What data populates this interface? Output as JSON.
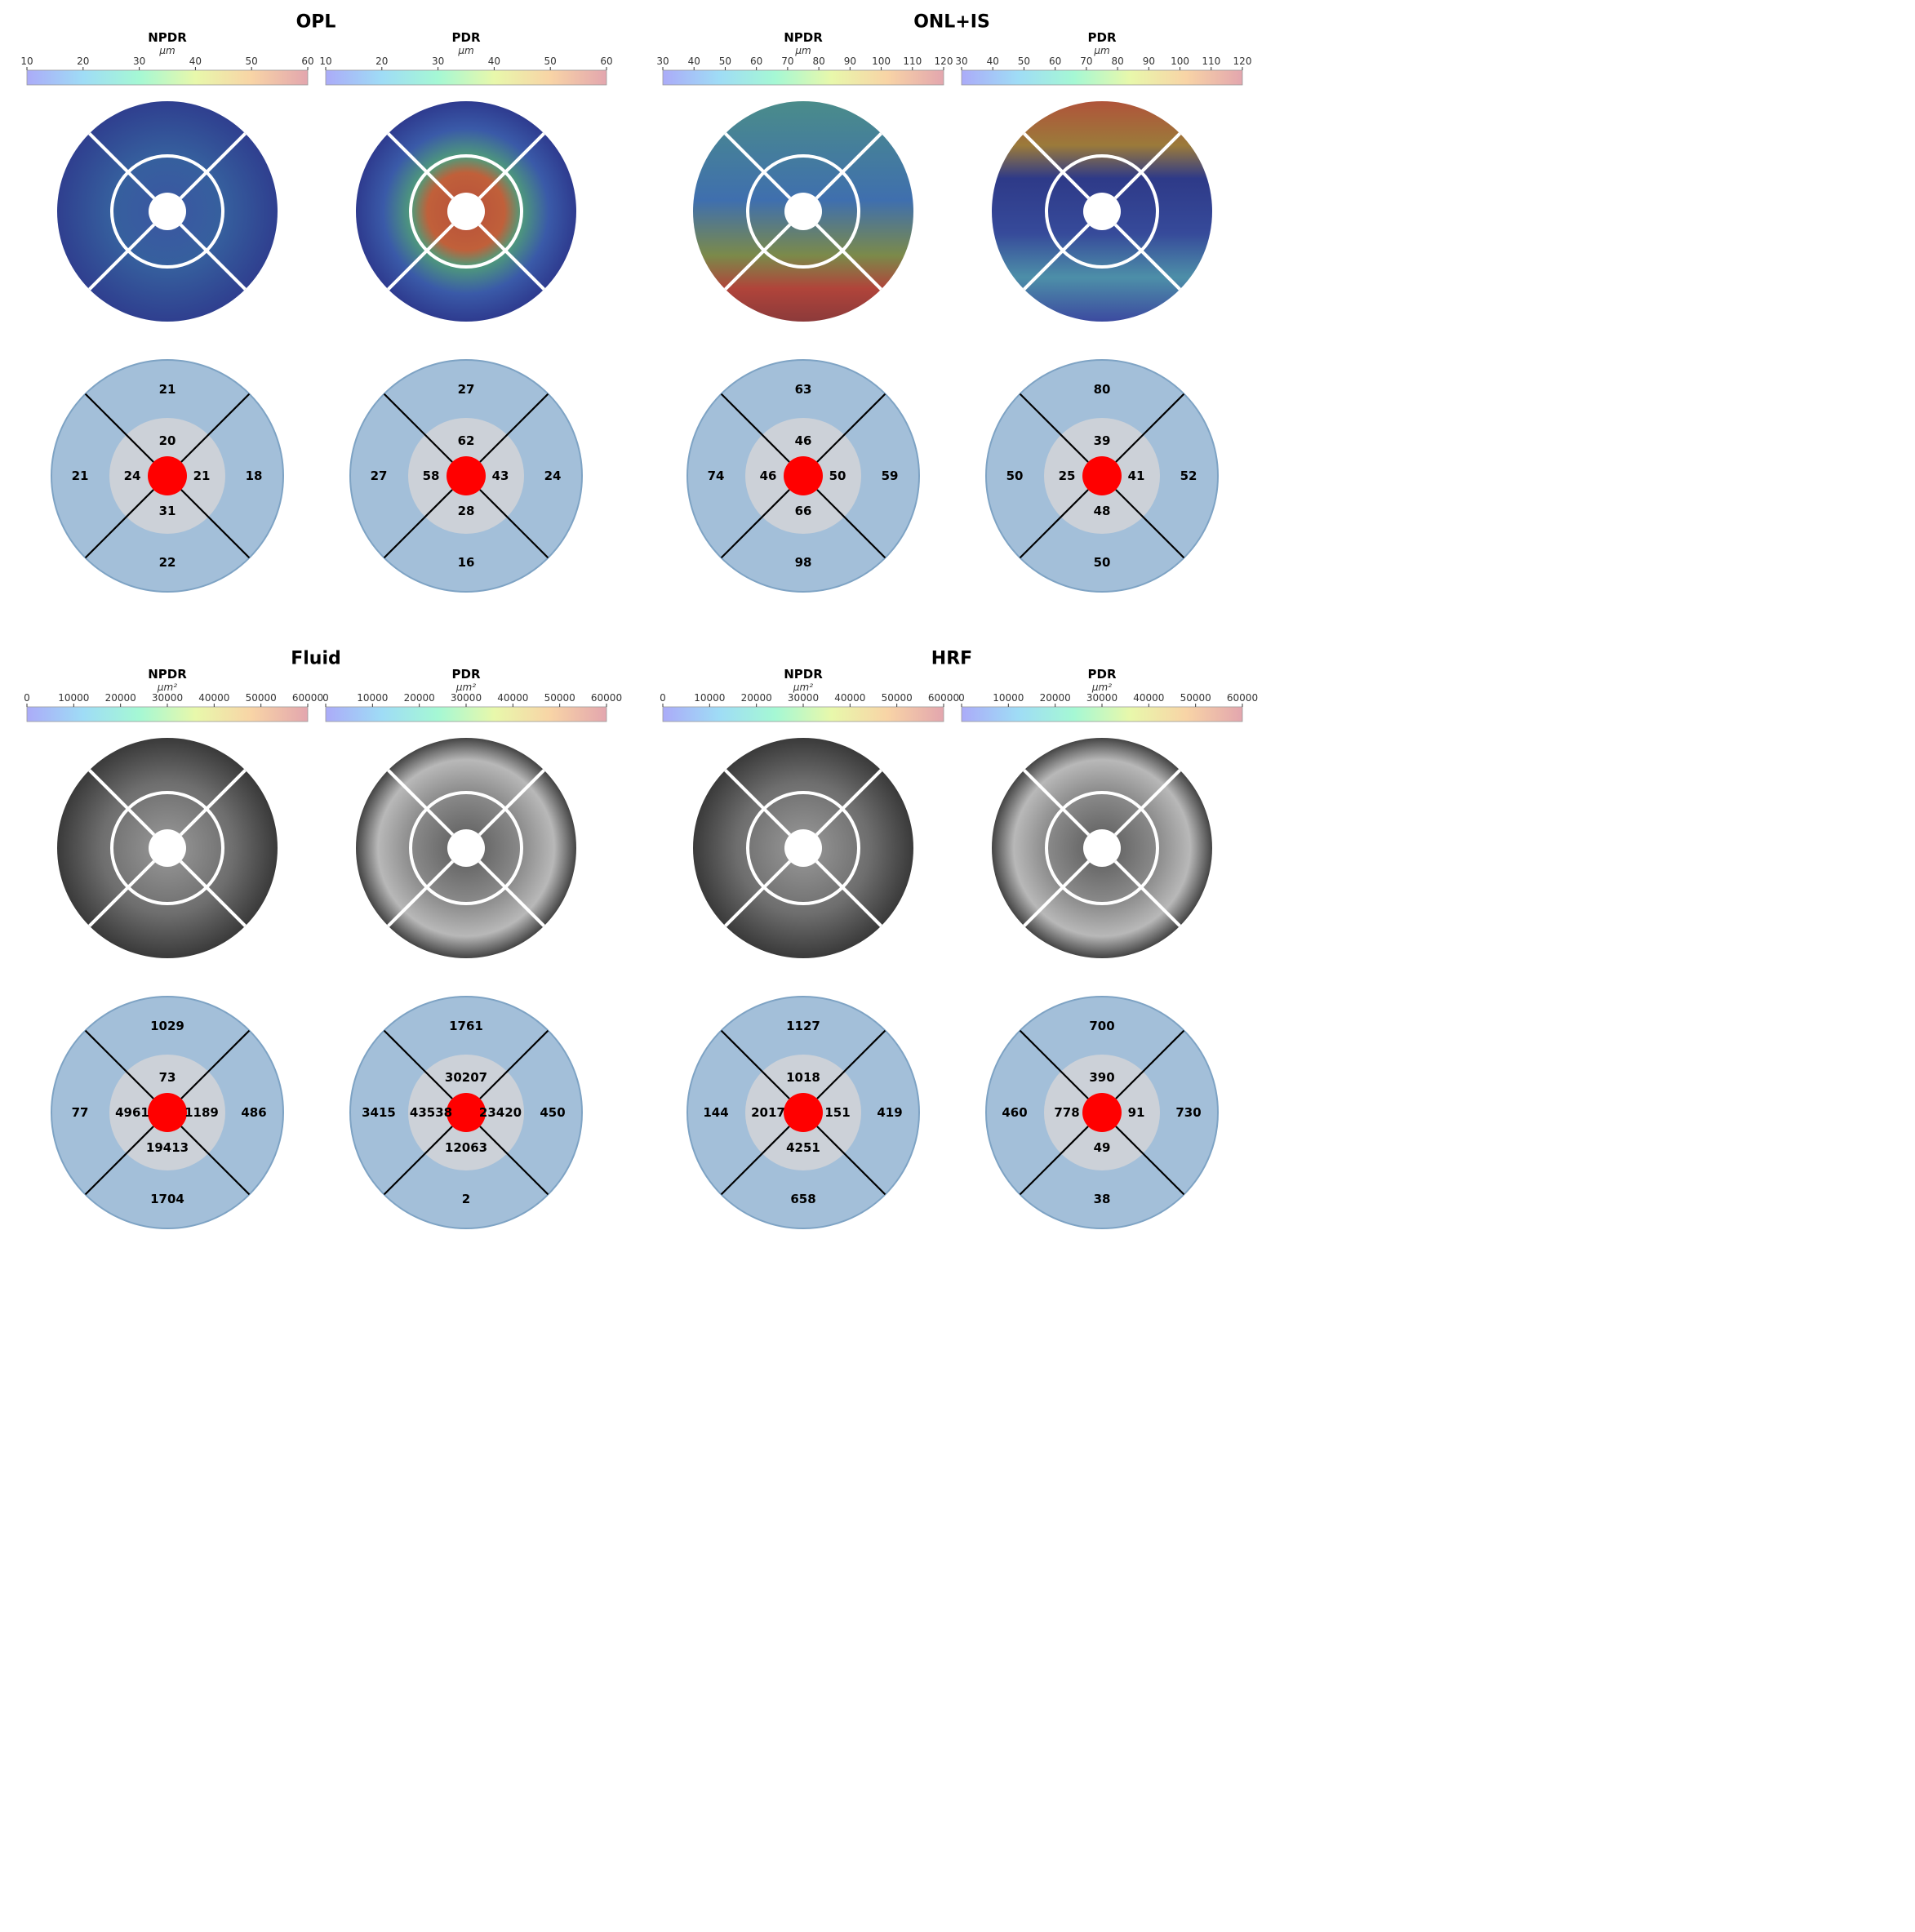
{
  "colormap_stops": [
    "#ababf8",
    "#9fdcf6",
    "#a5f8d4",
    "#e8f8ab",
    "#f8d4a6",
    "#e3a6ae"
  ],
  "panel_groups": [
    {
      "title": "OPL",
      "unit": "μm",
      "panels": [
        {
          "label": "NPDR",
          "ticks": [
            "10",
            "20",
            "30",
            "40",
            "50",
            "60"
          ],
          "map_style": "thickness-npdr",
          "sectors": {
            "superior_outer": "21",
            "superior_inner": "20",
            "temporal_outer": "21",
            "temporal_inner": "24",
            "nasal_inner": "21",
            "nasal_outer": "18",
            "inferior_inner": "31",
            "inferior_outer": "22"
          }
        },
        {
          "label": "PDR",
          "ticks": [
            "10",
            "20",
            "30",
            "40",
            "50",
            "60"
          ],
          "map_style": "thickness-ring-hot",
          "sectors": {
            "superior_outer": "27",
            "superior_inner": "62",
            "temporal_outer": "27",
            "temporal_inner": "58",
            "nasal_inner": "43",
            "nasal_outer": "24",
            "inferior_inner": "28",
            "inferior_outer": "16"
          }
        }
      ]
    },
    {
      "title": "ONL+IS",
      "unit": "μm",
      "panels": [
        {
          "label": "NPDR",
          "ticks": [
            "30",
            "40",
            "50",
            "60",
            "70",
            "80",
            "90",
            "100",
            "110",
            "120"
          ],
          "map_style": "thickness-bottom-hot",
          "sectors": {
            "superior_outer": "63",
            "superior_inner": "46",
            "temporal_outer": "74",
            "temporal_inner": "46",
            "nasal_inner": "50",
            "nasal_outer": "59",
            "inferior_inner": "66",
            "inferior_outer": "98"
          }
        },
        {
          "label": "PDR",
          "ticks": [
            "30",
            "40",
            "50",
            "60",
            "70",
            "80",
            "90",
            "100",
            "110",
            "120"
          ],
          "map_style": "thickness-top-hot",
          "sectors": {
            "superior_outer": "80",
            "superior_inner": "39",
            "temporal_outer": "50",
            "temporal_inner": "25",
            "nasal_inner": "41",
            "nasal_outer": "52",
            "inferior_inner": "48",
            "inferior_outer": "50"
          }
        }
      ]
    },
    {
      "title": "Fluid",
      "unit": "μm²",
      "panels": [
        {
          "label": "NPDR",
          "ticks": [
            "0",
            "10000",
            "20000",
            "30000",
            "40000",
            "50000",
            "60000"
          ],
          "map_style": "fundus-dark",
          "sectors": {
            "superior_outer": "1029",
            "superior_inner": "73",
            "temporal_outer": "77",
            "temporal_inner": "4961",
            "nasal_inner": "1189",
            "nasal_outer": "486",
            "inferior_inner": "19413",
            "inferior_outer": "1704"
          }
        },
        {
          "label": "PDR",
          "ticks": [
            "0",
            "10000",
            "20000",
            "30000",
            "40000",
            "50000",
            "60000"
          ],
          "map_style": "fundus-light",
          "sectors": {
            "superior_outer": "1761",
            "superior_inner": "30207",
            "temporal_outer": "3415",
            "temporal_inner": "43538",
            "nasal_inner": "23420",
            "nasal_outer": "450",
            "inferior_inner": "12063",
            "inferior_outer": "2"
          }
        }
      ]
    },
    {
      "title": "HRF",
      "unit": "μm²",
      "panels": [
        {
          "label": "NPDR",
          "ticks": [
            "0",
            "10000",
            "20000",
            "30000",
            "40000",
            "50000",
            "60000"
          ],
          "map_style": "fundus-dark",
          "sectors": {
            "superior_outer": "1127",
            "superior_inner": "1018",
            "temporal_outer": "144",
            "temporal_inner": "2017",
            "nasal_inner": "151",
            "nasal_outer": "419",
            "inferior_inner": "4251",
            "inferior_outer": "658"
          }
        },
        {
          "label": "PDR",
          "ticks": [
            "0",
            "10000",
            "20000",
            "30000",
            "40000",
            "50000",
            "60000"
          ],
          "map_style": "fundus-light",
          "sectors": {
            "superior_outer": "700",
            "superior_inner": "390",
            "temporal_outer": "460",
            "temporal_inner": "778",
            "nasal_inner": "91",
            "nasal_outer": "730",
            "inferior_inner": "49",
            "inferior_outer": "38"
          }
        }
      ]
    }
  ]
}
